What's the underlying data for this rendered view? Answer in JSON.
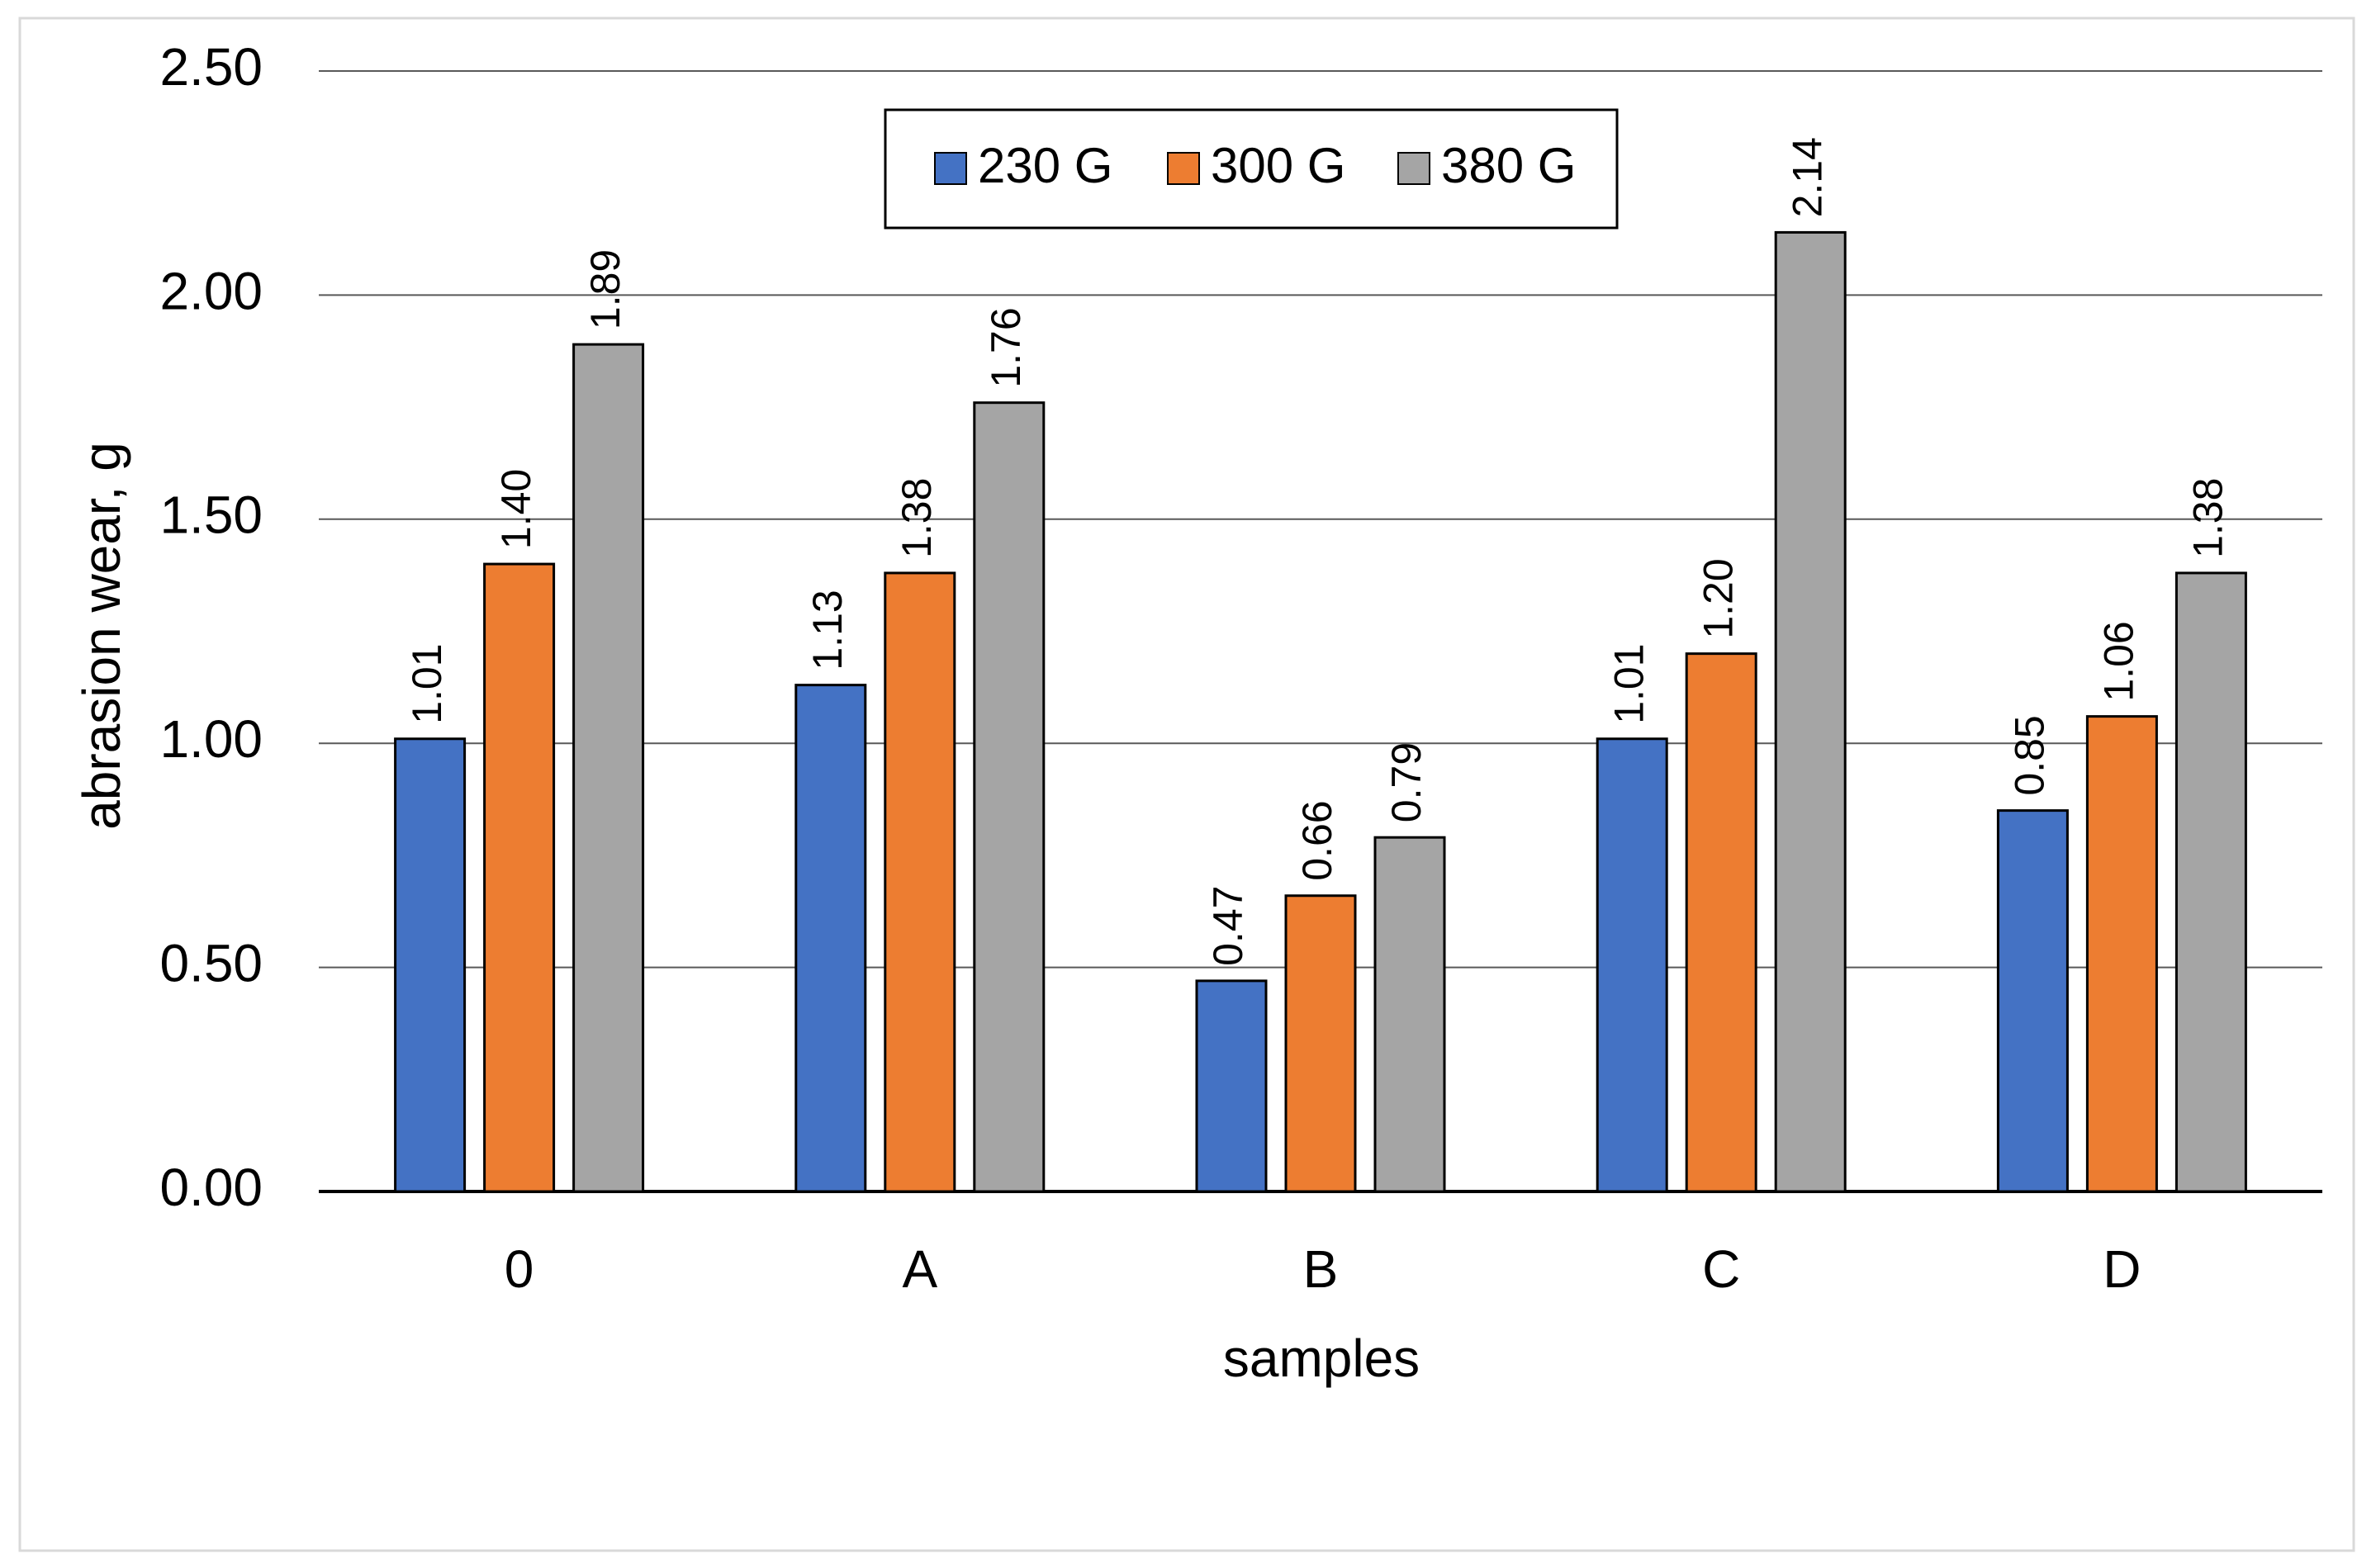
{
  "chart_data": {
    "type": "bar",
    "title": "",
    "xlabel": "samples",
    "ylabel": "abrasion wear, g",
    "ylim": [
      0,
      2.5
    ],
    "yticks": [
      "0.00",
      "0.50",
      "1.00",
      "1.50",
      "2.00",
      "2.50"
    ],
    "ytick_values": [
      0,
      0.5,
      1.0,
      1.5,
      2.0,
      2.5
    ],
    "grid": true,
    "legend_position": "top-center",
    "categories": [
      "0",
      "A",
      "B",
      "C",
      "D"
    ],
    "series": [
      {
        "name": "230 G",
        "color": "#4472C4",
        "values": [
          1.01,
          1.13,
          0.47,
          1.01,
          0.85
        ],
        "labels": [
          "1.01",
          "1.13",
          "0.47",
          "1.01",
          "0.85"
        ]
      },
      {
        "name": "300 G",
        "color": "#ED7D31",
        "values": [
          1.4,
          1.38,
          0.66,
          1.2,
          1.06
        ],
        "labels": [
          "1.40",
          "1.38",
          "0.66",
          "1.20",
          "1.06"
        ]
      },
      {
        "name": "380 G",
        "color": "#A5A5A5",
        "values": [
          1.89,
          1.76,
          0.79,
          2.14,
          1.38
        ],
        "labels": [
          "1.89",
          "1.76",
          "0.79",
          "2.14",
          "1.38"
        ]
      }
    ]
  }
}
